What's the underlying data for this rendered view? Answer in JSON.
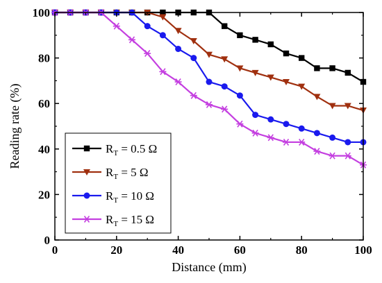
{
  "chart_data": {
    "type": "line",
    "xlabel": "Distance (mm)",
    "ylabel": "Reading rate (%)",
    "xlim": [
      0,
      100
    ],
    "ylim": [
      0,
      100
    ],
    "xticks": [
      "0",
      "20",
      "40",
      "60",
      "80",
      "100"
    ],
    "yticks": [
      "0",
      "20",
      "40",
      "60",
      "80",
      "100"
    ],
    "grid": false,
    "legend_position": "bottom-left",
    "x": [
      0,
      5,
      10,
      15,
      20,
      25,
      30,
      35,
      40,
      45,
      50,
      55,
      60,
      65,
      70,
      75,
      80,
      85,
      90,
      95,
      100
    ],
    "series": [
      {
        "label_main": "R",
        "label_sub": "T",
        "label_rest": " = 0.5 Ω",
        "color": "#000000",
        "marker": "square",
        "values": [
          100,
          100,
          100,
          100,
          100,
          100,
          100,
          100,
          100,
          100,
          100,
          94,
          90,
          88,
          86,
          82,
          80,
          75.5,
          75.5,
          73.5,
          69.5
        ]
      },
      {
        "label_main": "R",
        "label_sub": "T",
        "label_rest": " = 5 Ω",
        "color": "#a0300f",
        "marker": "triangle-down",
        "values": [
          100,
          100,
          100,
          100,
          100,
          100,
          100,
          98,
          92,
          87.5,
          81.5,
          79.5,
          75.5,
          73.5,
          71.5,
          69.5,
          67.5,
          63,
          59,
          59,
          57
        ]
      },
      {
        "label_main": "R",
        "label_sub": "T",
        "label_rest": " = 10 Ω",
        "color": "#1a1aee",
        "marker": "circle",
        "values": [
          100,
          100,
          100,
          100,
          100,
          100,
          94,
          90,
          84,
          80,
          69.5,
          67.5,
          63.5,
          55,
          53,
          51,
          49,
          47,
          45,
          43,
          43
        ]
      },
      {
        "label_main": "R",
        "label_sub": "T",
        "label_rest": " = 15 Ω",
        "color": "#c43fe0",
        "marker": "star",
        "values": [
          100,
          100,
          100,
          100,
          94,
          88,
          82,
          74,
          69.5,
          63.5,
          59.5,
          57.5,
          51,
          47,
          45,
          43,
          43,
          39,
          37,
          37,
          33
        ]
      }
    ]
  }
}
